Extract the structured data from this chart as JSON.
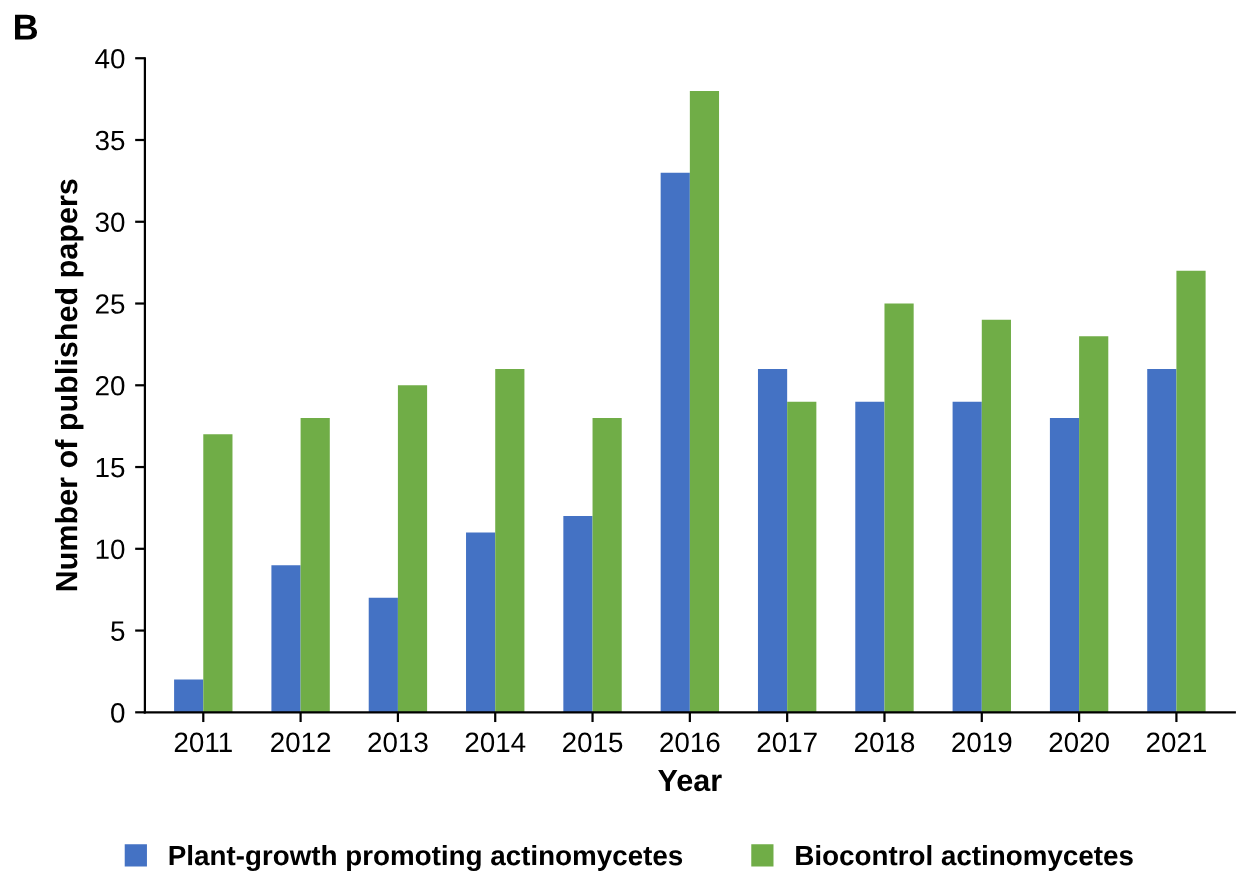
{
  "chart_data": {
    "type": "bar",
    "xlabel": "Year",
    "ylabel": "Number of published papers",
    "annotations": [
      "B"
    ],
    "categories": [
      "2011",
      "2012",
      "2013",
      "2014",
      "2015",
      "2016",
      "2017",
      "2018",
      "2019",
      "2020",
      "2021"
    ],
    "series": [
      {
        "name": "Plant-growth promoting actinomycetes",
        "color": "#4472c4",
        "values": [
          2,
          9,
          7,
          11,
          12,
          33,
          21,
          19,
          19,
          18,
          21
        ]
      },
      {
        "name": "Biocontrol actinomycetes",
        "color": "#70ad47",
        "values": [
          17,
          18,
          20,
          21,
          18,
          38,
          19,
          25,
          24,
          23,
          27
        ]
      }
    ],
    "ylim": [
      0,
      40
    ],
    "yticks": [
      0,
      5,
      10,
      15,
      20,
      25,
      30,
      35,
      40
    ],
    "grid": false,
    "legend": "bottom"
  }
}
